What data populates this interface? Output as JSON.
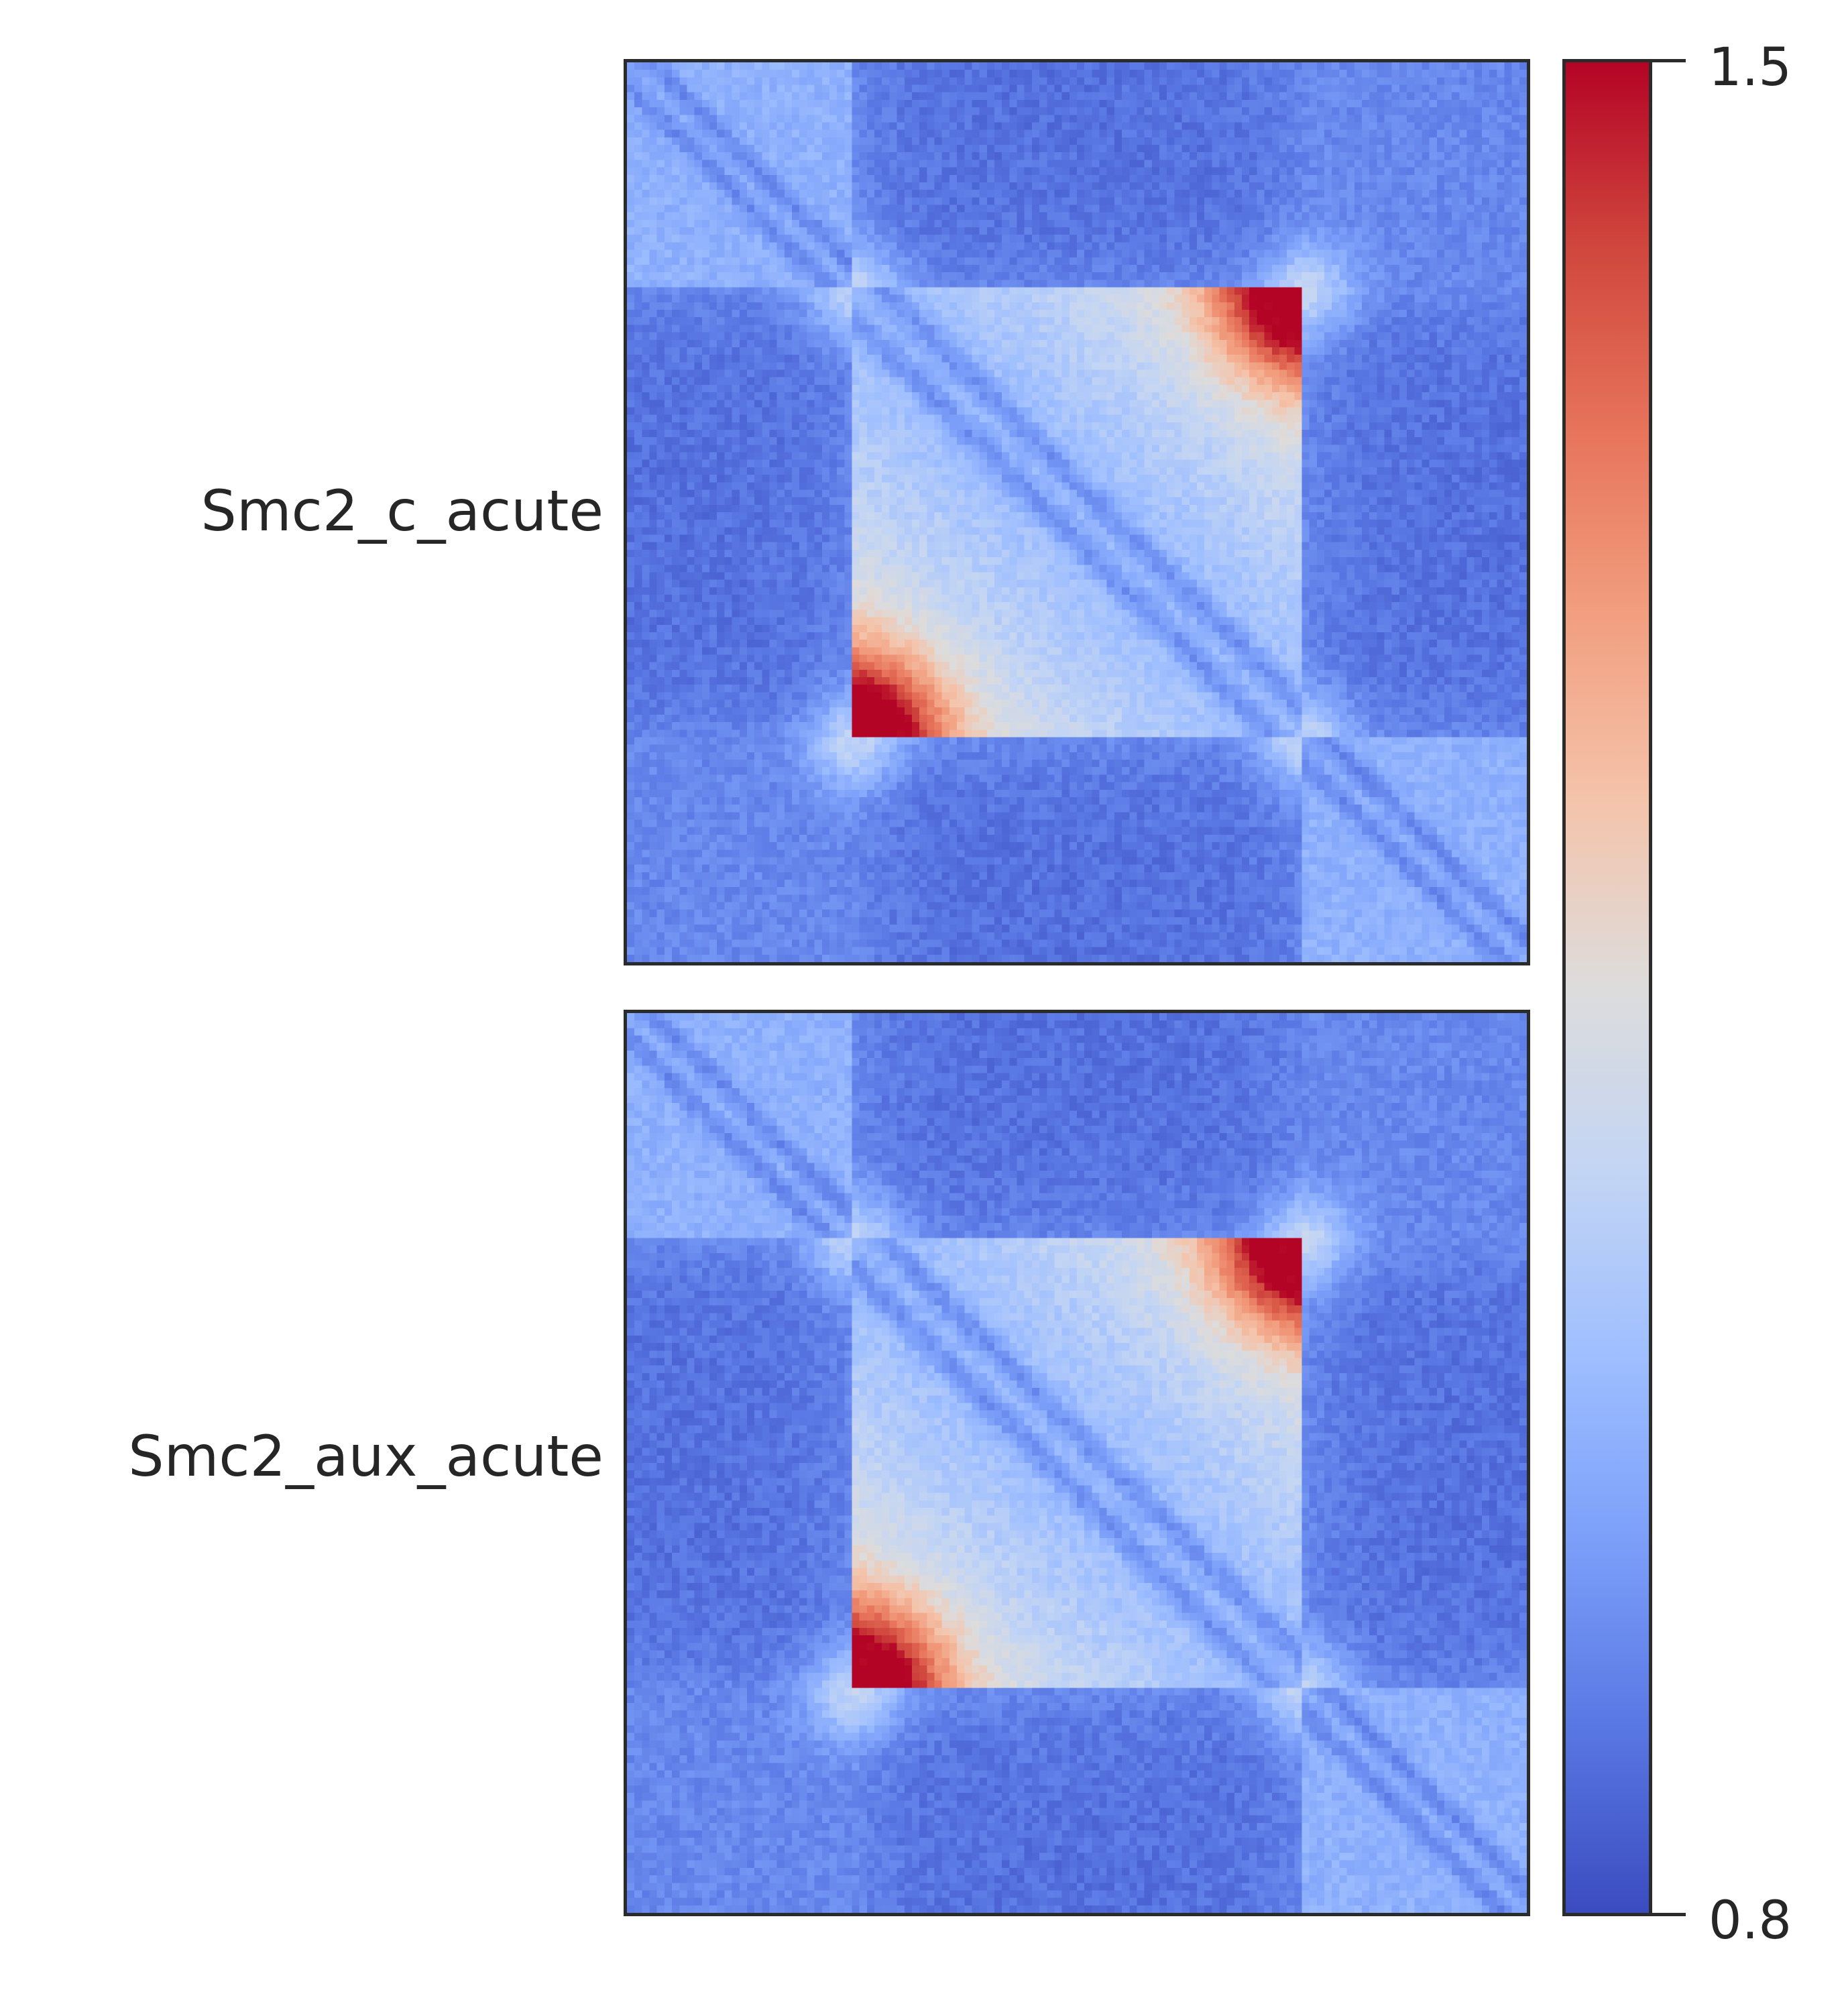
{
  "chart_data": {
    "type": "heatmap",
    "colormap": "coolwarm",
    "vmin": 0.8,
    "vmax": 1.5,
    "grid": false,
    "colorbar": {
      "position": "right",
      "ticks": [
        "1.5",
        "0.8"
      ]
    },
    "panels": [
      {
        "label": "Smc2_c_acute",
        "domain_boundaries_fraction": [
          0.25,
          0.75
        ],
        "corner_peak_value": 1.5,
        "diagonal_value": 1.0,
        "off_domain_value": 0.85
      },
      {
        "label": "Smc2_aux_acute",
        "domain_boundaries_fraction": [
          0.25,
          0.75
        ],
        "corner_peak_value": 1.5,
        "diagonal_value": 1.0,
        "off_domain_value": 0.85
      }
    ]
  }
}
